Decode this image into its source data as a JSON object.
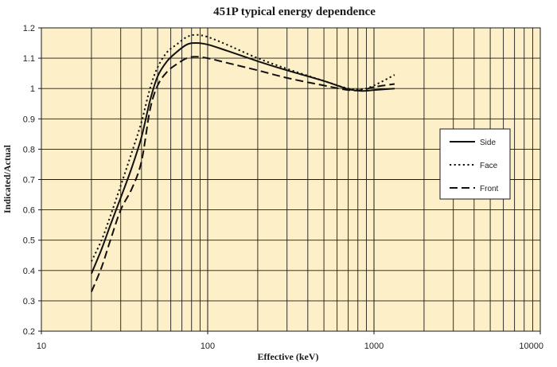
{
  "chart_data": {
    "type": "line",
    "title": "451P typical energy dependence",
    "xlabel": "Effective (keV)",
    "ylabel": "Indicated/Actual",
    "x_scale": "log",
    "xlim": [
      10,
      10000
    ],
    "ylim": [
      0.2,
      1.2
    ],
    "x_ticks": [
      "10",
      "100",
      "1000",
      "10000"
    ],
    "y_ticks": [
      "0.2",
      "0.3",
      "0.4",
      "0.5",
      "0.6",
      "0.7",
      "0.8",
      "0.9",
      "1",
      "1.1",
      "1.2"
    ],
    "grid": true,
    "legend_position": "right",
    "series": [
      {
        "name": "Side",
        "style": "solid",
        "points": [
          [
            20,
            0.39
          ],
          [
            23,
            0.47
          ],
          [
            26,
            0.55
          ],
          [
            30,
            0.64
          ],
          [
            35,
            0.74
          ],
          [
            40,
            0.84
          ],
          [
            45,
            0.96
          ],
          [
            50,
            1.04
          ],
          [
            57,
            1.09
          ],
          [
            65,
            1.12
          ],
          [
            75,
            1.145
          ],
          [
            85,
            1.15
          ],
          [
            100,
            1.145
          ],
          [
            130,
            1.125
          ],
          [
            200,
            1.09
          ],
          [
            300,
            1.06
          ],
          [
            500,
            1.025
          ],
          [
            700,
            0.998
          ],
          [
            850,
            0.992
          ],
          [
            1000,
            0.995
          ],
          [
            1330,
            1.0
          ]
        ]
      },
      {
        "name": "Face",
        "style": "dotted",
        "points": [
          [
            20,
            0.43
          ],
          [
            23,
            0.5
          ],
          [
            26,
            0.58
          ],
          [
            30,
            0.68
          ],
          [
            35,
            0.79
          ],
          [
            40,
            0.89
          ],
          [
            45,
            1.0
          ],
          [
            50,
            1.07
          ],
          [
            57,
            1.12
          ],
          [
            65,
            1.145
          ],
          [
            75,
            1.17
          ],
          [
            85,
            1.177
          ],
          [
            100,
            1.17
          ],
          [
            130,
            1.145
          ],
          [
            200,
            1.1
          ],
          [
            300,
            1.065
          ],
          [
            500,
            1.025
          ],
          [
            700,
            1.0
          ],
          [
            850,
            0.998
          ],
          [
            1000,
            1.01
          ],
          [
            1330,
            1.045
          ]
        ]
      },
      {
        "name": "Front",
        "style": "dashed",
        "points": [
          [
            20,
            0.33
          ],
          [
            23,
            0.41
          ],
          [
            26,
            0.5
          ],
          [
            30,
            0.6
          ],
          [
            35,
            0.67
          ],
          [
            40,
            0.76
          ],
          [
            45,
            0.93
          ],
          [
            50,
            1.01
          ],
          [
            57,
            1.055
          ],
          [
            65,
            1.08
          ],
          [
            75,
            1.1
          ],
          [
            85,
            1.105
          ],
          [
            100,
            1.1
          ],
          [
            130,
            1.085
          ],
          [
            200,
            1.06
          ],
          [
            300,
            1.035
          ],
          [
            500,
            1.01
          ],
          [
            700,
            0.995
          ],
          [
            850,
            0.995
          ],
          [
            1000,
            1.005
          ],
          [
            1330,
            1.015
          ]
        ]
      }
    ]
  },
  "colors": {
    "plot_background": "#fdf0c8",
    "grid": "#1a1a1a",
    "line": "#111111"
  }
}
